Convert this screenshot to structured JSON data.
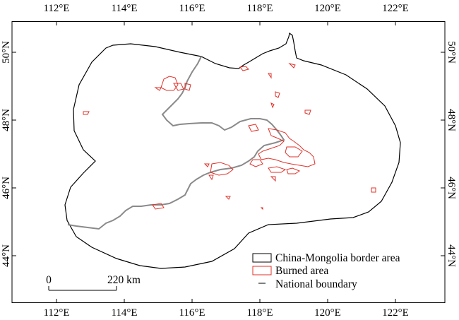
{
  "top_ticks": [
    "112°E",
    "114°E",
    "116°E",
    "118°E",
    "120°E",
    "122°E"
  ],
  "bottom_ticks": [
    "112°E",
    "114°E",
    "116°E",
    "118°E",
    "120°E",
    "122°E"
  ],
  "left_ticks": [
    "50°N",
    "48°N",
    "46°N",
    "44°N"
  ],
  "right_ticks": [
    "50°N",
    "48°N",
    "46°N",
    "44°N"
  ],
  "legend": {
    "items": [
      {
        "label": "China-Mongolia border area",
        "symbol": "black-outline-box",
        "color": "#000000"
      },
      {
        "label": "Burned area",
        "symbol": "red-outline-box",
        "color": "#e0322a"
      },
      {
        "label": "National boundary",
        "symbol": "gray-line",
        "color": "#7f7f7f"
      }
    ]
  },
  "scale_bar": {
    "start_label": "0",
    "end_label": "220 km"
  },
  "colors": {
    "study_area": "#000000",
    "burned": "#e0322a",
    "boundary": "#8a8a8a",
    "frame": "#000000"
  }
}
